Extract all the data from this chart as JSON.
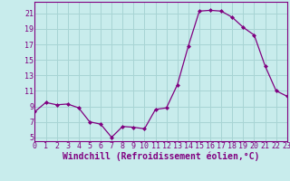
{
  "x": [
    0,
    1,
    2,
    3,
    4,
    5,
    6,
    7,
    8,
    9,
    10,
    11,
    12,
    13,
    14,
    15,
    16,
    17,
    18,
    19,
    20,
    21,
    22,
    23
  ],
  "y": [
    8.3,
    9.5,
    9.2,
    9.3,
    8.8,
    7.0,
    6.7,
    5.0,
    6.4,
    6.3,
    6.1,
    8.6,
    8.8,
    11.8,
    16.8,
    21.3,
    21.4,
    21.3,
    20.5,
    19.2,
    18.2,
    14.2,
    11.0,
    10.3
  ],
  "xlim": [
    0,
    23
  ],
  "ylim": [
    4.5,
    22.5
  ],
  "yticks": [
    5,
    7,
    9,
    11,
    13,
    15,
    17,
    19,
    21
  ],
  "xticks": [
    0,
    1,
    2,
    3,
    4,
    5,
    6,
    7,
    8,
    9,
    10,
    11,
    12,
    13,
    14,
    15,
    16,
    17,
    18,
    19,
    20,
    21,
    22,
    23
  ],
  "xlabel": "Windchill (Refroidissement éolien,°C)",
  "line_color": "#800080",
  "marker": "D",
  "marker_size": 2.0,
  "bg_color": "#c8ecec",
  "grid_color": "#a8d4d4",
  "xlabel_fontsize": 7.0,
  "tick_fontsize": 6.0,
  "spine_color": "#800080",
  "line_width": 0.9
}
